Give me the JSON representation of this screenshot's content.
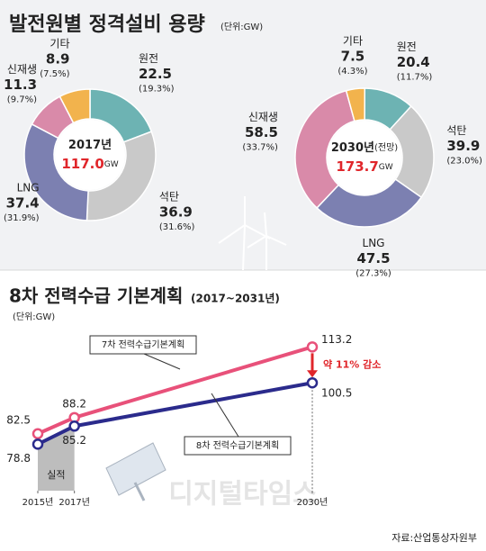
{
  "header": {
    "title": "발전원별 정격설비 용량",
    "unit": "(단위:GW)"
  },
  "chart_data": [
    {
      "type": "donut",
      "center_title": "2017년",
      "total": 117,
      "total_label": "117.0",
      "unit": "GW",
      "categories": [
        "원전",
        "석탄",
        "LNG",
        "신재생",
        "기타"
      ],
      "values": [
        22.5,
        36.9,
        37.4,
        11.3,
        8.9
      ],
      "percent_labels": [
        "(19.3%)",
        "(31.6%)",
        "(31.9%)",
        "(9.7%)",
        "(7.5%)"
      ],
      "colors": [
        "#6db3b3",
        "#c9c9c9",
        "#7c80b1",
        "#d98aa9",
        "#f2b34d"
      ]
    },
    {
      "type": "donut",
      "center_title": "2030년",
      "center_note": "(전망)",
      "total": 173.7,
      "total_label": "173.7",
      "unit": "GW",
      "categories": [
        "원전",
        "석탄",
        "LNG",
        "신재생",
        "기타"
      ],
      "values": [
        20.4,
        39.9,
        47.5,
        58.5,
        7.5
      ],
      "percent_labels": [
        "(11.7%)",
        "(23.0%)",
        "(27.3%)",
        "(33.7%)",
        "(4.3%)"
      ],
      "colors": [
        "#6db3b3",
        "#c9c9c9",
        "#7c80b1",
        "#d98aa9",
        "#f2b34d"
      ]
    },
    {
      "type": "line",
      "title": "8차 전력수급 기본계획",
      "subtitle": "(2017~2031년)",
      "unit_label": "(단위:GW)",
      "x": [
        2015,
        2017,
        2030
      ],
      "xlim": [
        2015,
        2030
      ],
      "xticks": [
        {
          "value": 2015,
          "label": "2015년"
        },
        {
          "value": 2017,
          "label": "2017년"
        },
        {
          "value": 2030,
          "label": "2030년"
        }
      ],
      "ylim": [
        70,
        120
      ],
      "series": [
        {
          "name": "7차 전력수급기본계획",
          "color": "#e8517a",
          "values": [
            82.5,
            88.2,
            113.2
          ]
        },
        {
          "name": "8차 전력수급기본계획",
          "color": "#2b2b8c",
          "values": [
            78.8,
            85.2,
            100.5
          ]
        }
      ],
      "annotation": "약 11% 감소",
      "actual_label": "실적"
    }
  ],
  "watermark": "디지털타임스",
  "source": "자료:산업통상자원부"
}
